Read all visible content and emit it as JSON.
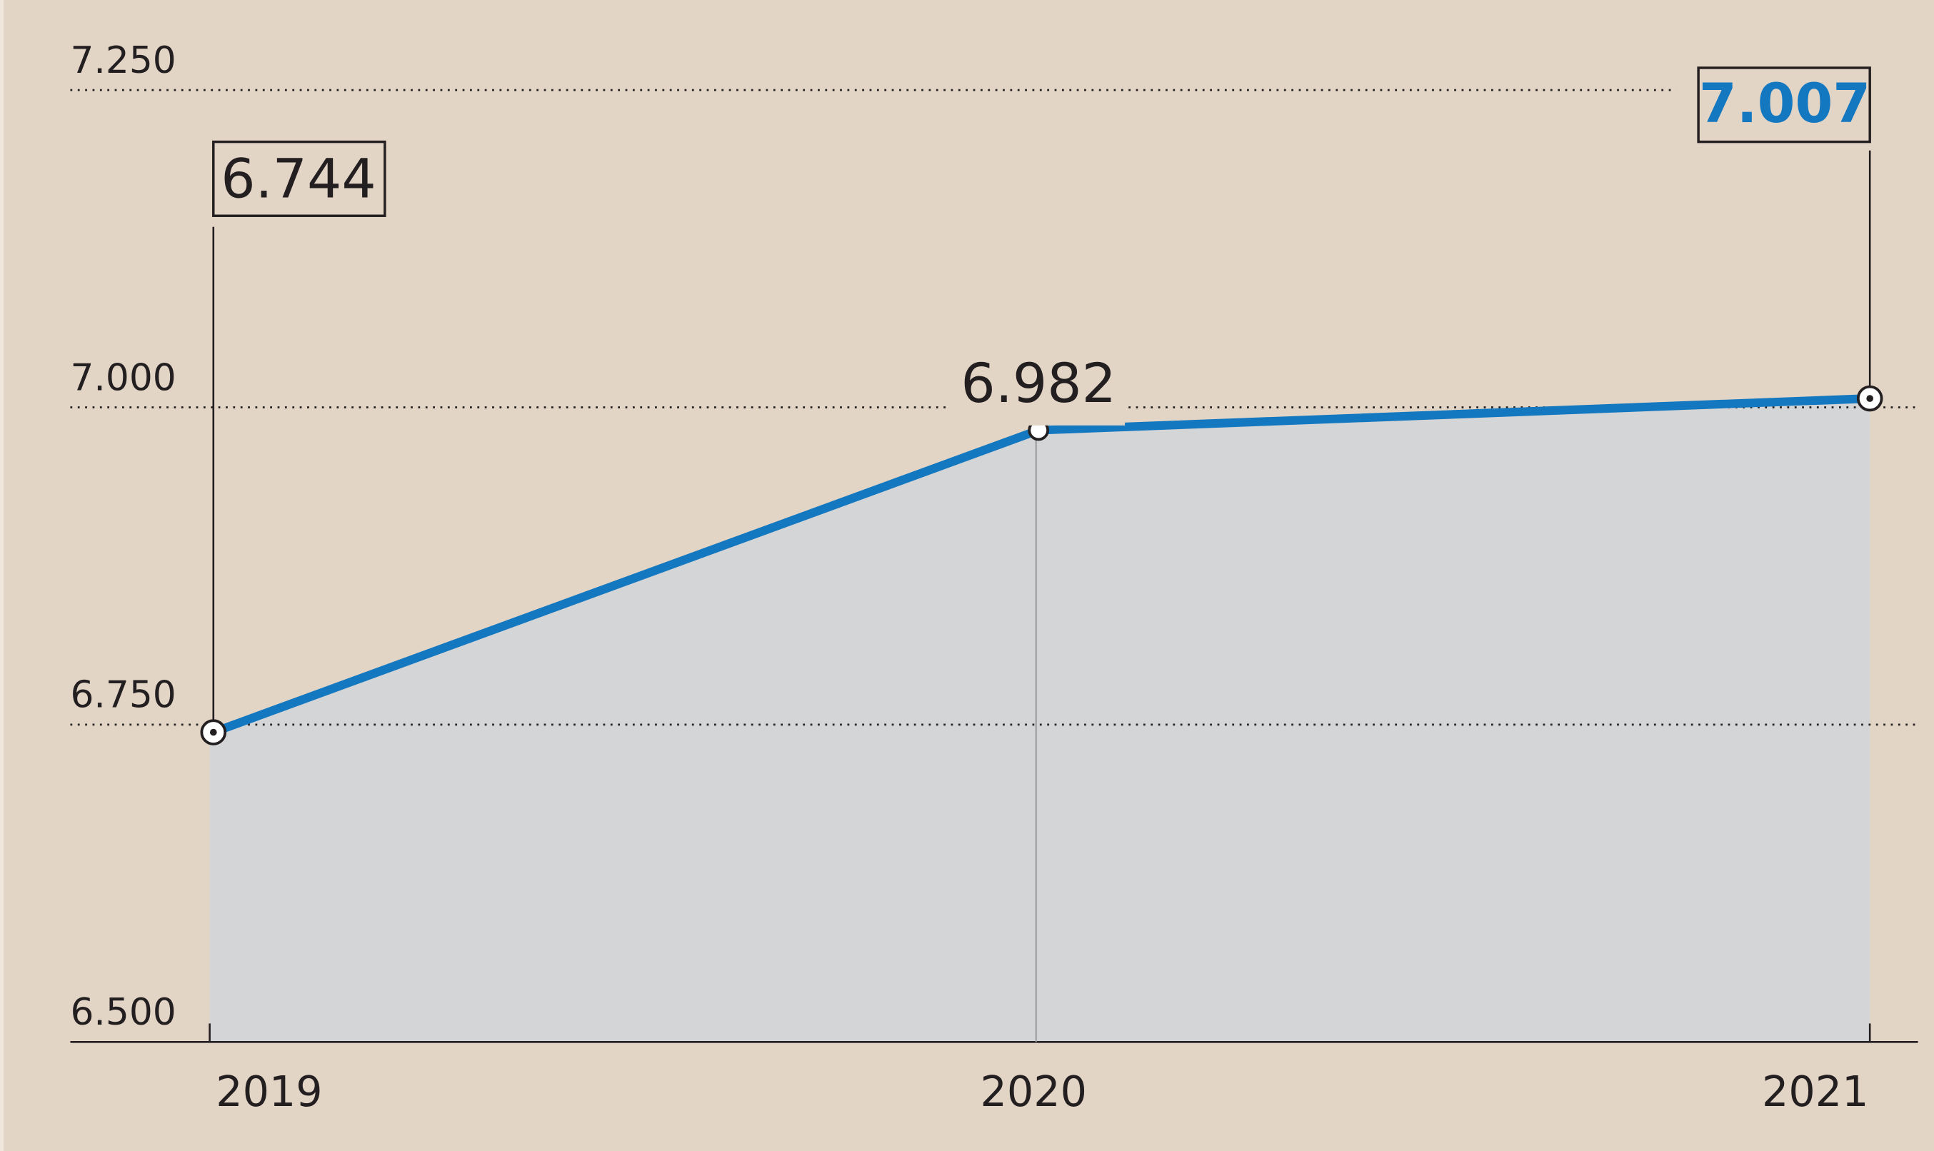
{
  "chart_data": {
    "type": "line",
    "categories": [
      "2019",
      "2020",
      "2021"
    ],
    "values": [
      6744,
      6982,
      7007
    ],
    "value_labels": [
      "6.744",
      "6.982",
      "7.007"
    ],
    "color": "#1478c0",
    "area_color": "#d3d5d7",
    "ylim": [
      6500,
      7250
    ],
    "yticks": [
      {
        "value": 6500,
        "label": "6.500"
      },
      {
        "value": 6750,
        "label": "6.750"
      },
      {
        "value": 7000,
        "label": "7.000"
      },
      {
        "value": 7250,
        "label": "7.250"
      }
    ],
    "grid": true
  }
}
